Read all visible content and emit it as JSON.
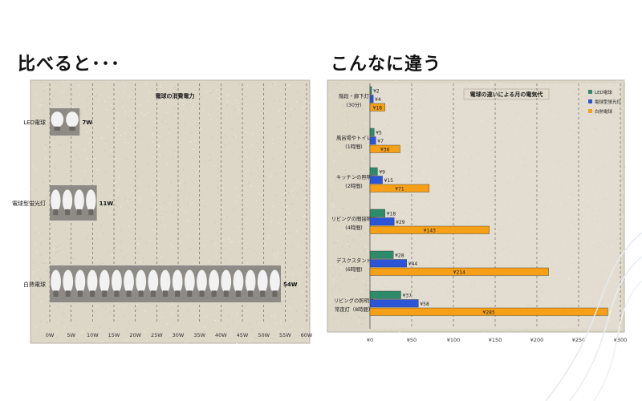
{
  "headings": {
    "left": "比べると･･･",
    "right": "こんなに違う"
  },
  "colors": {
    "led": "#2e8b6a",
    "fluorescent": "#2b55d6",
    "incandescent": "#f5a016",
    "panel_bg": "#ddd7c8"
  },
  "chart_data": [
    {
      "type": "bar",
      "title": "電球の消費電力",
      "orientation": "horizontal",
      "categories": [
        "LED電球",
        "電球型蛍光灯",
        "白熱電球"
      ],
      "values": [
        7,
        11,
        54
      ],
      "value_labels": [
        "7W",
        "11W",
        "54W"
      ],
      "xlim": [
        0,
        60
      ],
      "x_ticks": [
        0,
        5,
        10,
        15,
        20,
        25,
        30,
        35,
        40,
        45,
        50,
        55,
        60
      ],
      "x_tick_labels": [
        "0W",
        "5W",
        "10W",
        "15W",
        "20W",
        "25W",
        "30W",
        "35W",
        "40W",
        "45W",
        "50W",
        "55W",
        "60W"
      ],
      "grid": "vertical dashed",
      "bar_style": "pictograph of light bulbs"
    },
    {
      "type": "bar",
      "title": "電球の違いによる月の電気代",
      "orientation": "horizontal",
      "categories": [
        [
          "階段・廊下灯",
          "(30分)"
        ],
        [
          "風呂場やトイレ",
          "(1時間)"
        ],
        [
          "キッチンの照明",
          "(2時間)"
        ],
        [
          "リビングの間接照明",
          "(4時間)"
        ],
        [
          "デスクスタンド",
          "(6時間)"
        ],
        [
          "リビングの照明や",
          "常夜灯（8時間）"
        ]
      ],
      "series": [
        {
          "name": "LED電球",
          "color": "#2e8b6a",
          "values": [
            2,
            5,
            9,
            18,
            28,
            37
          ],
          "labels": [
            "¥2",
            "¥5",
            "¥9",
            "¥18",
            "¥28",
            "¥37"
          ]
        },
        {
          "name": "電球型蛍光灯",
          "color": "#2b55d6",
          "values": [
            4,
            7,
            15,
            29,
            44,
            58
          ],
          "labels": [
            "¥4",
            "¥7",
            "¥15",
            "¥29",
            "¥44",
            "¥58"
          ]
        },
        {
          "name": "白熱電球",
          "color": "#f5a016",
          "values": [
            18,
            36,
            71,
            143,
            214,
            285
          ],
          "labels": [
            "¥18",
            "¥36",
            "¥71",
            "¥143",
            "¥214",
            "¥285"
          ]
        }
      ],
      "xlim": [
        0,
        300
      ],
      "x_ticks": [
        0,
        50,
        100,
        150,
        200,
        250,
        300
      ],
      "x_tick_labels": [
        "¥0",
        "¥50",
        "¥100",
        "¥150",
        "¥200",
        "¥250",
        "¥300"
      ],
      "grid": "vertical dashed",
      "legend": "top-right"
    }
  ]
}
